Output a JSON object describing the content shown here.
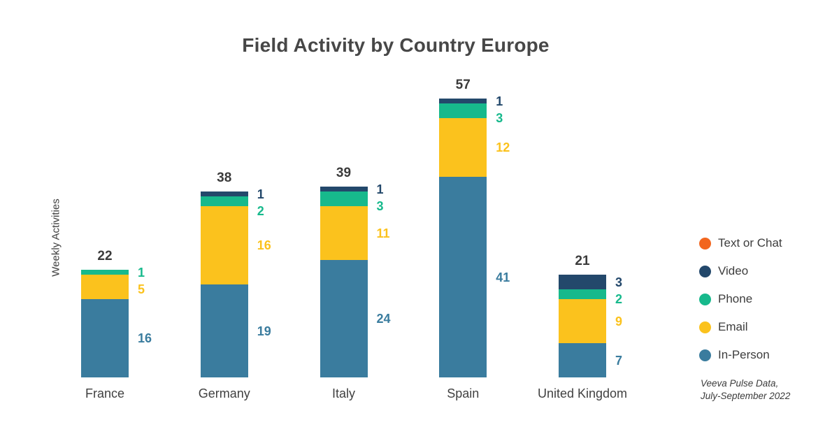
{
  "chart_data": {
    "type": "bar",
    "stacked": true,
    "title": "Field Activity by Country Europe",
    "xlabel": "",
    "ylabel": "Weekly Activities",
    "grid": false,
    "legend_position": "right",
    "value_labels": "segment values beside bars, totals above bars",
    "categories": [
      "France",
      "Germany",
      "Italy",
      "Spain",
      "United Kingdom"
    ],
    "totals": [
      22,
      38,
      39,
      57,
      21
    ],
    "series": [
      {
        "name": "Text or Chat",
        "color": "#F2661F",
        "values": [
          0,
          0,
          0,
          0,
          0
        ]
      },
      {
        "name": "Video",
        "color": "#23486B",
        "values": [
          0,
          1,
          1,
          1,
          3
        ]
      },
      {
        "name": "Phone",
        "color": "#17B98C",
        "values": [
          1,
          2,
          3,
          3,
          2
        ]
      },
      {
        "name": "Email",
        "color": "#FBC21D",
        "values": [
          5,
          16,
          11,
          12,
          9
        ]
      },
      {
        "name": "In-Person",
        "color": "#3A7C9E",
        "values": [
          16,
          19,
          24,
          41,
          7
        ]
      }
    ]
  },
  "source": {
    "line1": "Veeva Pulse Data,",
    "line2": "July-September 2022"
  }
}
